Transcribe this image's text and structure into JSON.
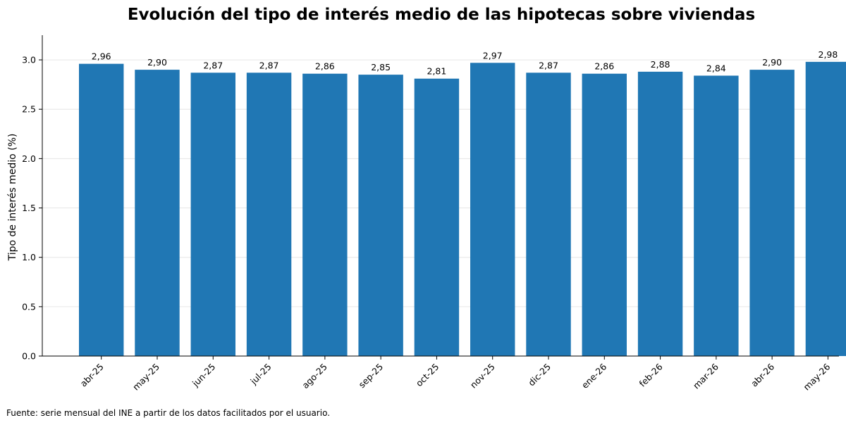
{
  "chart_data": {
    "type": "bar",
    "title": "Evolución del tipo de interés medio de las hipotecas sobre viviendas",
    "xlabel": "",
    "ylabel": "Tipo de interés medio (%)",
    "categories": [
      "abr-25",
      "may-25",
      "jun-25",
      "jul-25",
      "ago-25",
      "sep-25",
      "oct-25",
      "nov-25",
      "dic-25",
      "ene-26",
      "feb-26",
      "mar-26",
      "abr-26",
      "may-26"
    ],
    "values": [
      2.96,
      2.9,
      2.87,
      2.87,
      2.86,
      2.85,
      2.81,
      2.97,
      2.87,
      2.86,
      2.88,
      2.84,
      2.9,
      2.98
    ],
    "value_labels": [
      "2,96",
      "2,90",
      "2,87",
      "2,87",
      "2,86",
      "2,85",
      "2,81",
      "2,97",
      "2,87",
      "2,86",
      "2,88",
      "2,84",
      "2,90",
      "2,98"
    ],
    "ylim": [
      0,
      3.25
    ],
    "yticks": [
      0.0,
      0.5,
      1.0,
      1.5,
      2.0,
      2.5,
      3.0
    ],
    "ytick_labels": [
      "0.0",
      "0.5",
      "1.0",
      "1.5",
      "2.0",
      "2.5",
      "3.0"
    ],
    "grid": "horizontal",
    "bar_color": "#2077b4"
  },
  "footnote": "Fuente: serie mensual del INE a partir de los datos facilitados por el usuario."
}
